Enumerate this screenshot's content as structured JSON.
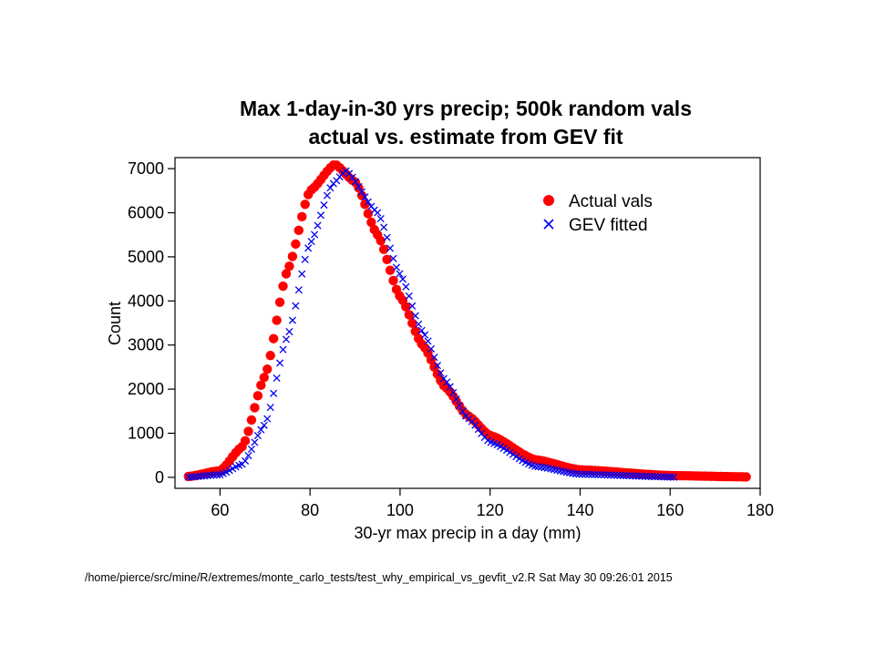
{
  "chart_data": {
    "type": "scatter",
    "title": "Max 1-day-in-30 yrs precip; 500k random vals",
    "subtitle": "actual vs. estimate from GEV fit",
    "xlabel": "30-yr max precip in a day (mm)",
    "ylabel": "Count",
    "xlim": [
      50,
      180
    ],
    "ylim": [
      -250,
      7250
    ],
    "x_ticks": [
      60,
      80,
      100,
      120,
      140,
      160,
      180
    ],
    "y_ticks": [
      0,
      1000,
      2000,
      3000,
      4000,
      5000,
      6000,
      7000
    ],
    "grid": false,
    "legend_position": "top-right",
    "series": [
      {
        "name": "Actual vals",
        "marker": "filled-circle",
        "color": "#ff0000",
        "x_range": [
          53,
          177
        ],
        "x_step": 0.7,
        "peak_x": 85.5,
        "peak_y": 7100,
        "sample_points": [
          [
            53,
            20
          ],
          [
            60,
            150
          ],
          [
            65,
            700
          ],
          [
            70,
            2300
          ],
          [
            75,
            4700
          ],
          [
            80,
            6500
          ],
          [
            85.5,
            7100
          ],
          [
            90,
            6700
          ],
          [
            95,
            5500
          ],
          [
            100,
            4100
          ],
          [
            105,
            3000
          ],
          [
            110,
            2050
          ],
          [
            115,
            1400
          ],
          [
            120,
            950
          ],
          [
            130,
            400
          ],
          [
            140,
            170
          ],
          [
            160,
            40
          ],
          [
            177,
            10
          ]
        ]
      },
      {
        "name": "GEV fitted",
        "marker": "x",
        "color": "#0000ee",
        "x_range": [
          53,
          161
        ],
        "x_step": 0.7,
        "peak_x": 88,
        "peak_y": 6950,
        "sample_points": [
          [
            53,
            5
          ],
          [
            60,
            60
          ],
          [
            65,
            300
          ],
          [
            70,
            1200
          ],
          [
            75,
            3200
          ],
          [
            80,
            5300
          ],
          [
            85,
            6650
          ],
          [
            88,
            6950
          ],
          [
            95,
            6000
          ],
          [
            100,
            4600
          ],
          [
            105,
            3300
          ],
          [
            110,
            2200
          ],
          [
            115,
            1350
          ],
          [
            120,
            800
          ],
          [
            130,
            250
          ],
          [
            140,
            70
          ],
          [
            161,
            5
          ]
        ]
      }
    ]
  },
  "footer": {
    "script_path": "/home/pierce/src/mine/R/extremes/monte_carlo_tests/test_why_empirical_vs_gevfit_v2.R Sat May 30 09:26:01 2015"
  },
  "colors": {
    "actual": "#ff0000",
    "gev": "#0000ee"
  }
}
